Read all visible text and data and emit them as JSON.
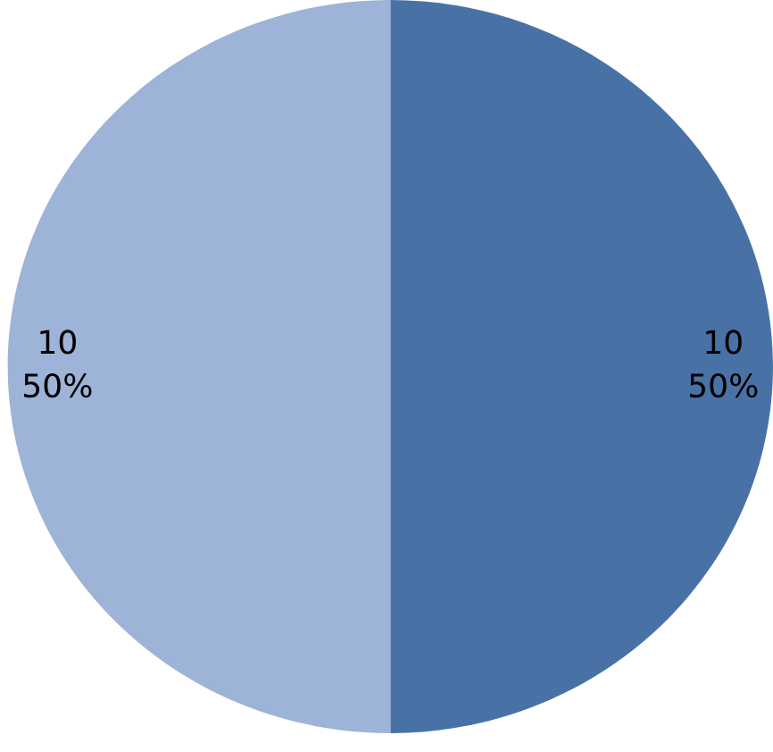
{
  "chart_data": {
    "type": "pie",
    "categories": [
      null,
      null
    ],
    "values": [
      10,
      10
    ],
    "colors": [
      "#4872a6",
      "#9db3d8"
    ],
    "value_labels": [
      "10\n50%",
      "10\n50%"
    ]
  }
}
